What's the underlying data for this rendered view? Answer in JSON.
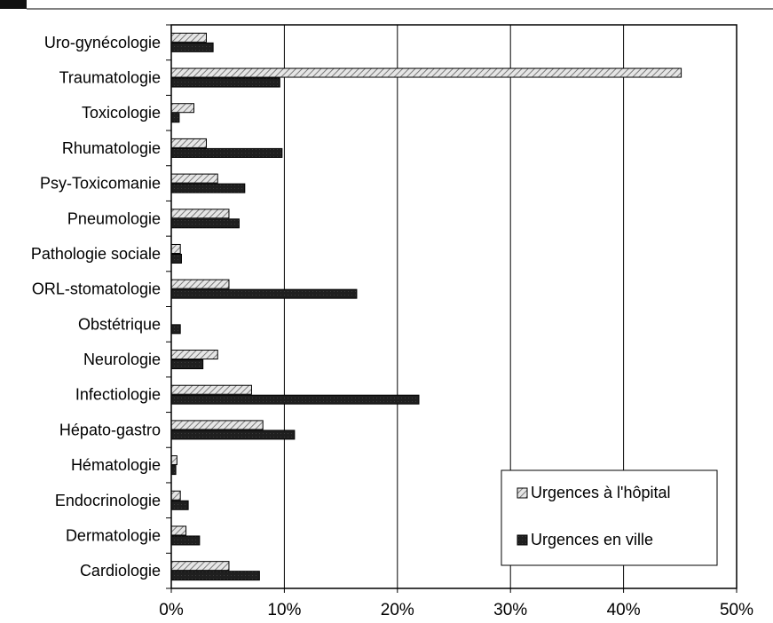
{
  "chart_data": {
    "type": "bar",
    "orientation": "horizontal",
    "categories": [
      "Uro-gynécologie",
      "Traumatologie",
      "Toxicologie",
      "Rhumatologie",
      "Psy-Toxicomanie",
      "Pneumologie",
      "Pathologie sociale",
      "ORL-stomatologie",
      "Obstétrique",
      "Neurologie",
      "Infectiologie",
      "Hépato-gastro",
      "Hématologie",
      "Endocrinologie",
      "Dermatologie",
      "Cardiologie"
    ],
    "series": [
      {
        "name": "Urgences à l'hôpital",
        "values": [
          3.1,
          45.1,
          2.0,
          3.1,
          4.1,
          5.1,
          0.8,
          5.1,
          0.0,
          4.1,
          7.1,
          8.1,
          0.5,
          0.8,
          1.3,
          5.1
        ],
        "color": "#d9d9d9",
        "pattern": "hatched"
      },
      {
        "name": "Urgences en ville",
        "values": [
          3.7,
          9.6,
          0.7,
          9.8,
          6.5,
          6.0,
          0.9,
          16.4,
          0.8,
          2.8,
          21.9,
          10.9,
          0.4,
          1.5,
          2.5,
          7.8
        ],
        "color": "#1f1f1f",
        "pattern": "solid"
      }
    ],
    "xlim": [
      0,
      50
    ],
    "x_ticks": [
      "0%",
      "10%",
      "20%",
      "30%",
      "40%",
      "50%"
    ],
    "grid": "vertical",
    "legend_position": "bottom-right",
    "title": "",
    "xlabel": "",
    "ylabel": ""
  }
}
